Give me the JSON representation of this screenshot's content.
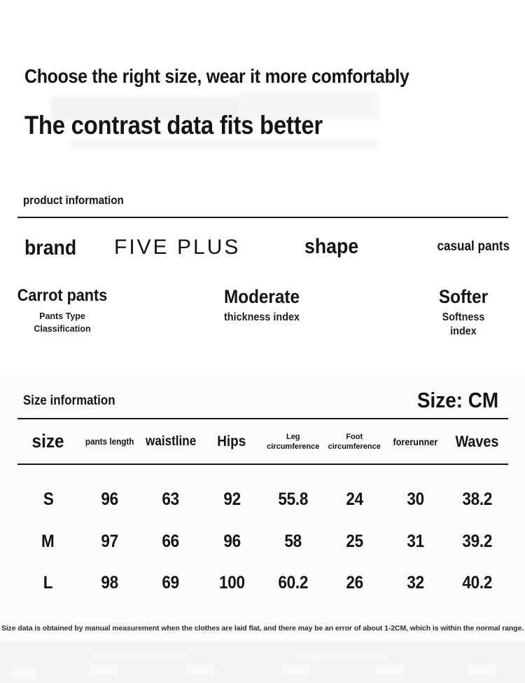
{
  "hero": {
    "heading1": "Choose the right size, wear it more comfortably",
    "heading2": "The contrast data fits better"
  },
  "product_info": {
    "section_label": "product information",
    "brand_label": "brand",
    "brand_value": "FIVE PLUS",
    "shape_label": "shape",
    "shape_value": "casual pants",
    "attributes": [
      {
        "value": "Carrot pants",
        "label_line1": "Pants Type",
        "label_line2": "Classification"
      },
      {
        "value": "Moderate",
        "label_line1": "thickness index"
      },
      {
        "value": "Softer",
        "label_line1": "Softness index"
      }
    ]
  },
  "size_info": {
    "section_label": "Size information",
    "unit_label": "Size: CM",
    "table": {
      "columns": [
        {
          "label": "size"
        },
        {
          "label": "pants length"
        },
        {
          "label": "waistline"
        },
        {
          "label": "Hips"
        },
        {
          "label": "Leg",
          "label2": "circumference"
        },
        {
          "label": "Foot",
          "label2": "circumference"
        },
        {
          "label": "forerunner"
        },
        {
          "label": "Waves"
        }
      ],
      "rows": [
        {
          "cells": [
            "S",
            "96",
            "63",
            "92",
            "55.8",
            "24",
            "30",
            "38.2"
          ]
        },
        {
          "cells": [
            "M",
            "97",
            "66",
            "96",
            "58",
            "25",
            "31",
            "39.2"
          ]
        },
        {
          "cells": [
            "L",
            "98",
            "69",
            "100",
            "60.2",
            "26",
            "32",
            "40.2"
          ]
        }
      ]
    },
    "disclaimer": "Size data is obtained by manual measurement when the clothes are laid flat, and there may be an error of about 1-2CM, which is within the normal range."
  },
  "colors": {
    "text": "#141414",
    "divider": "#1a1a1a",
    "section_background": "#fbfbfb",
    "bottom_strip": "#f4f4f4"
  }
}
